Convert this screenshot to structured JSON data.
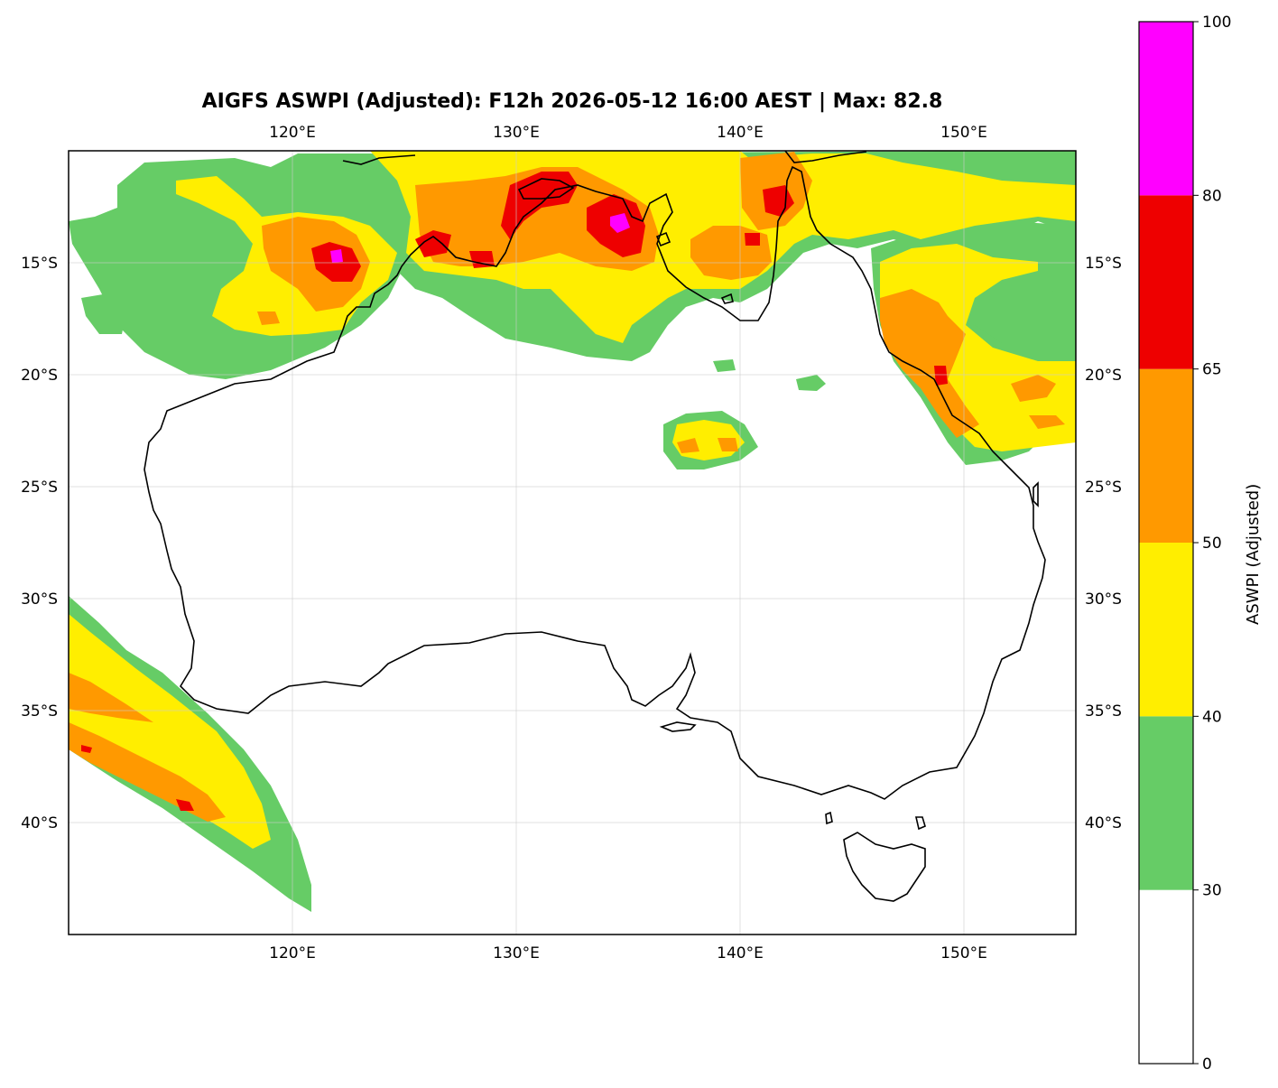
{
  "map": {
    "title": "AIGFS ASWPI (Adjusted): F12h 2026-05-12 16:00 AEST | Max: 82.8",
    "lon_ticks": [
      "120°E",
      "130°E",
      "140°E",
      "150°E"
    ],
    "lat_ticks": [
      "15°S",
      "20°S",
      "25°S",
      "30°S",
      "35°S",
      "40°S"
    ],
    "lon_values": [
      120,
      130,
      140,
      150
    ],
    "lat_values": [
      -15,
      -20,
      -25,
      -30,
      -35,
      -40
    ],
    "extent": {
      "lon_min": 110,
      "lon_max": 155,
      "lat_min": -45,
      "lat_max": -10
    },
    "gridlines": true
  },
  "colorbar": {
    "label": "ASWPI (Adjusted)",
    "ticks": [
      "0",
      "30",
      "40",
      "50",
      "65",
      "80",
      "100"
    ],
    "bins": [
      {
        "from": 0,
        "to": 30,
        "color": "#ffffff"
      },
      {
        "from": 30,
        "to": 40,
        "color": "#66cc66"
      },
      {
        "from": 40,
        "to": 50,
        "color": "#ffee00"
      },
      {
        "from": 50,
        "to": 65,
        "color": "#ff9900"
      },
      {
        "from": 65,
        "to": 80,
        "color": "#ee0000"
      },
      {
        "from": 80,
        "to": 100,
        "color": "#ff00ff"
      }
    ]
  },
  "colors": {
    "green": "#66cc66",
    "yellow": "#ffee00",
    "orange": "#ff9900",
    "red": "#ee0000",
    "magenta": "#ff00ff",
    "coast": "#000000"
  }
}
